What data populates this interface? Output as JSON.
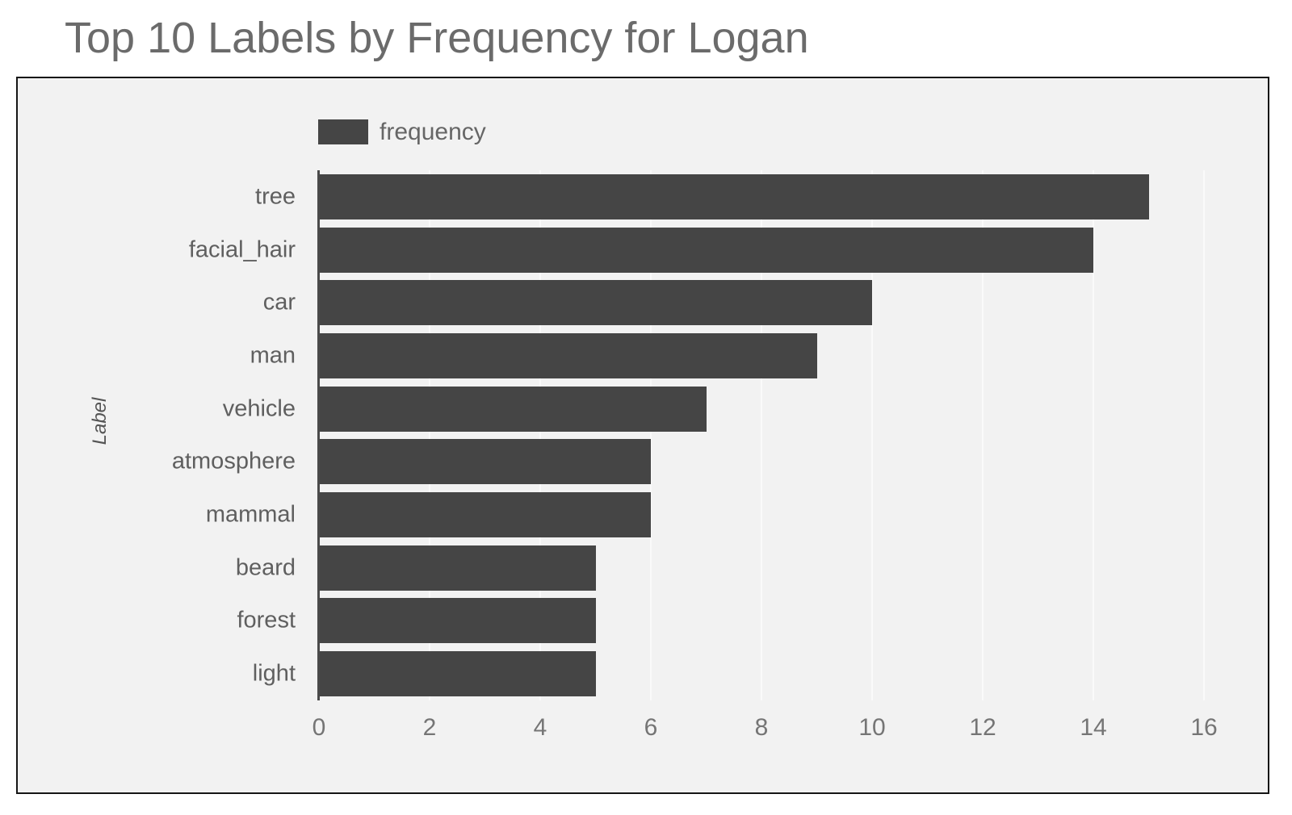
{
  "page": {
    "title": "Top 10 Labels by Frequency for Logan"
  },
  "chart_data": {
    "type": "bar",
    "orientation": "horizontal",
    "title": "Top 10 Labels by Frequency for Logan",
    "categories": [
      "tree",
      "facial_hair",
      "car",
      "man",
      "vehicle",
      "atmosphere",
      "mammal",
      "beard",
      "forest",
      "light"
    ],
    "values": [
      15,
      14,
      10,
      9,
      7,
      6,
      6,
      5,
      5,
      5
    ],
    "series": [
      {
        "name": "frequency",
        "color": "#454545"
      }
    ],
    "xlabel": "",
    "ylabel": "Label",
    "xlim": [
      0,
      16
    ],
    "xticks": [
      0,
      2,
      4,
      6,
      8,
      10,
      12,
      14,
      16
    ],
    "grid": true,
    "legend_position": "top-left"
  },
  "colors": {
    "page_background": "#ffffff",
    "panel_background": "#f2f2f2",
    "panel_border": "#161616",
    "bar": "#454545",
    "axis_line": "#4a4a4a",
    "gridline": "#fafafa",
    "title_text": "#6b6b6b",
    "tick_text": "#757575",
    "category_text": "#5f5f5f",
    "legend_text": "#666666"
  }
}
